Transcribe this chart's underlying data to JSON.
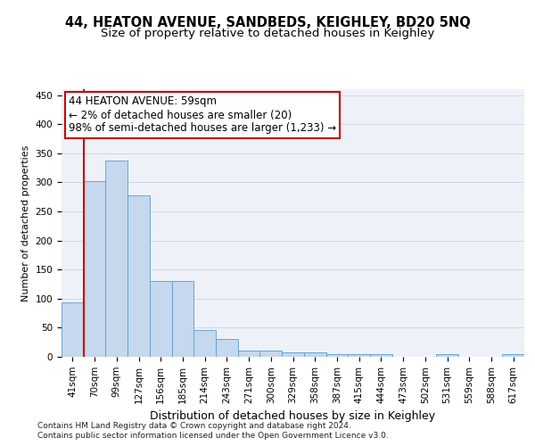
{
  "title": "44, HEATON AVENUE, SANDBEDS, KEIGHLEY, BD20 5NQ",
  "subtitle": "Size of property relative to detached houses in Keighley",
  "xlabel": "Distribution of detached houses by size in Keighley",
  "ylabel": "Number of detached properties",
  "categories": [
    "41sqm",
    "70sqm",
    "99sqm",
    "127sqm",
    "156sqm",
    "185sqm",
    "214sqm",
    "243sqm",
    "271sqm",
    "300sqm",
    "329sqm",
    "358sqm",
    "387sqm",
    "415sqm",
    "444sqm",
    "473sqm",
    "502sqm",
    "531sqm",
    "559sqm",
    "588sqm",
    "617sqm"
  ],
  "values": [
    93,
    302,
    338,
    278,
    131,
    131,
    46,
    31,
    10,
    10,
    8,
    8,
    4,
    4,
    4,
    0,
    0,
    4,
    0,
    0,
    4
  ],
  "bar_color": "#c5d8ed",
  "bar_edge_color": "#5b9bd5",
  "annotation_line1": "44 HEATON AVENUE: 59sqm",
  "annotation_line2": "← 2% of detached houses are smaller (20)",
  "annotation_line3": "98% of semi-detached houses are larger (1,233) →",
  "annotation_box_color": "#ffffff",
  "annotation_box_edge_color": "#cc0000",
  "ylim": [
    0,
    460
  ],
  "yticks": [
    0,
    50,
    100,
    150,
    200,
    250,
    300,
    350,
    400,
    450
  ],
  "grid_color": "#d0d8e8",
  "bg_color": "#eef2f8",
  "footer_line1": "Contains HM Land Registry data © Crown copyright and database right 2024.",
  "footer_line2": "Contains public sector information licensed under the Open Government Licence v3.0.",
  "title_fontsize": 10.5,
  "subtitle_fontsize": 9.5,
  "xlabel_fontsize": 9,
  "ylabel_fontsize": 8,
  "tick_fontsize": 7.5,
  "annotation_fontsize": 8.5,
  "footer_fontsize": 6.5
}
